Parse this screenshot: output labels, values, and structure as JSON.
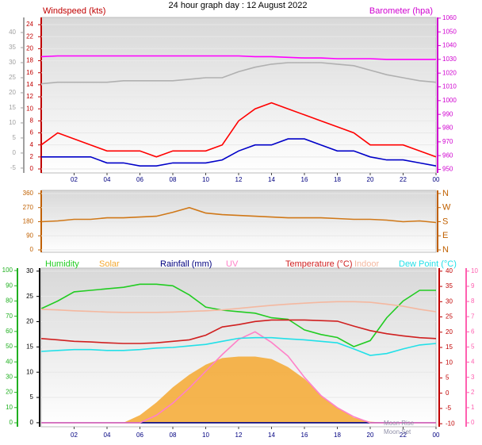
{
  "chart_data": [
    {
      "type": "line",
      "title": "24 hour graph day : 12 August 2022",
      "ylabel": "Windspeed (kts)",
      "y2label": "Barometer (hpa)",
      "x": [
        0,
        1,
        2,
        3,
        4,
        5,
        6,
        7,
        8,
        9,
        10,
        11,
        12,
        13,
        14,
        15,
        16,
        17,
        18,
        19,
        20,
        21,
        22,
        23,
        24
      ],
      "xlim": [
        0,
        24
      ],
      "xticks": [
        {
          "value": 2,
          "label": "02"
        },
        {
          "value": 4,
          "label": "04"
        },
        {
          "value": 6,
          "label": "06"
        },
        {
          "value": 8,
          "label": "08"
        },
        10,
        12,
        14,
        16,
        18,
        20,
        22,
        {
          "value": 24,
          "label": "00"
        }
      ],
      "ylim": [
        -0.66,
        25.2
      ],
      "yticks": [
        0,
        2,
        4,
        6,
        8,
        10,
        12,
        14,
        16,
        18,
        20,
        22,
        24
      ],
      "y2lim": [
        947.4,
        1060.5
      ],
      "y2ticks": [
        950,
        960,
        970,
        980,
        990,
        1000,
        1010,
        1020,
        1030,
        1040,
        1050,
        1060
      ],
      "y3lim": [
        -6.6,
        45
      ],
      "y3ticks": [
        -5,
        0,
        5,
        10,
        15,
        20,
        25,
        30,
        35,
        40
      ],
      "grid": true,
      "series": [
        {
          "color": "#b0b0b0",
          "axis": "y3",
          "values": [
            23,
            23.5,
            23.5,
            23.5,
            23.5,
            24,
            24,
            24,
            24,
            24.5,
            25,
            25,
            27,
            28.5,
            29.5,
            30,
            30,
            30,
            29.5,
            29,
            27.5,
            26,
            25,
            24,
            23.5
          ]
        },
        {
          "color": "#ff00ff",
          "axis": "y2",
          "values": [
            1032,
            1032.5,
            1032.5,
            1032.5,
            1032.5,
            1032.5,
            1032.5,
            1032.5,
            1032.5,
            1032.5,
            1032.5,
            1032.5,
            1032.5,
            1032,
            1032,
            1031.5,
            1031,
            1031,
            1030.5,
            1030.5,
            1030.5,
            1030,
            1030,
            1030,
            1030
          ]
        },
        {
          "color": "#ff0000",
          "values": [
            4,
            6,
            5,
            4,
            3,
            3,
            3,
            2,
            3,
            3,
            3,
            4,
            8,
            10,
            11,
            10,
            9,
            8,
            7,
            6,
            4,
            4,
            4,
            3,
            2
          ]
        },
        {
          "color": "#0000c8",
          "values": [
            2,
            2,
            2,
            2,
            1,
            1,
            0.5,
            0.5,
            1,
            1,
            1,
            1.5,
            3,
            4,
            4,
            5,
            5,
            4,
            3,
            3,
            2,
            1.5,
            1.5,
            1,
            0.5
          ]
        }
      ]
    },
    {
      "type": "line",
      "x": [
        0,
        1,
        2,
        3,
        4,
        5,
        6,
        7,
        8,
        9,
        10,
        11,
        12,
        13,
        14,
        15,
        16,
        17,
        18,
        19,
        20,
        21,
        22,
        23,
        24
      ],
      "xlim": [
        0,
        24
      ],
      "ylim": [
        -15,
        380
      ],
      "yticks": [
        0,
        90,
        180,
        270,
        360
      ],
      "y2lim": [
        -15,
        380
      ],
      "y2ticks": [
        {
          "value": 0,
          "label": "N"
        },
        {
          "value": 90,
          "label": "E"
        },
        {
          "value": 180,
          "label": "S"
        },
        {
          "value": 270,
          "label": "W"
        },
        {
          "value": 360,
          "label": "N"
        }
      ],
      "grid": true,
      "series": [
        {
          "color": "#d07818",
          "values": [
            180,
            185,
            195,
            195,
            205,
            205,
            210,
            215,
            240,
            270,
            235,
            225,
            220,
            215,
            210,
            205,
            205,
            205,
            200,
            195,
            195,
            190,
            180,
            185,
            175
          ]
        }
      ]
    },
    {
      "type": "line",
      "x": [
        0,
        1,
        2,
        3,
        4,
        5,
        6,
        7,
        8,
        9,
        10,
        11,
        12,
        13,
        14,
        15,
        16,
        17,
        18,
        19,
        20,
        21,
        22,
        23,
        24
      ],
      "xlim": [
        0,
        24
      ],
      "xticks": [
        {
          "value": 2,
          "label": "02"
        },
        {
          "value": 4,
          "label": "04"
        },
        {
          "value": 6,
          "label": "06"
        },
        {
          "value": 8,
          "label": "08"
        },
        10,
        12,
        14,
        16,
        18,
        20,
        22,
        {
          "value": 24,
          "label": "00"
        }
      ],
      "ylim": [
        -0.8,
        30.6
      ],
      "yticks": [
        0,
        5,
        10,
        15,
        20,
        25,
        30
      ],
      "y2lim": [
        -11,
        41
      ],
      "y2ticks": [
        -10,
        -5,
        0,
        5,
        10,
        15,
        20,
        25,
        30,
        35,
        40
      ],
      "y3lim": [
        -2.6,
        101.6
      ],
      "y3ticks": [
        0,
        10,
        20,
        30,
        40,
        50,
        60,
        70,
        80,
        90,
        100
      ],
      "y4lim": [
        -0.26,
        10.2
      ],
      "y4ticks": [
        0,
        1,
        2,
        3,
        4,
        5,
        6,
        7,
        8,
        9,
        10
      ],
      "grid": true,
      "annotations": [
        "Moon Rise",
        "Moon Set"
      ],
      "series": [
        {
          "name": "Humidity",
          "color": "#22cc22",
          "axis": "y3",
          "values": [
            75,
            80,
            86,
            87,
            88,
            89,
            91,
            91,
            90,
            84,
            76,
            74,
            73,
            72,
            69,
            68,
            61,
            58,
            56,
            50,
            54,
            69,
            80,
            87,
            87
          ]
        },
        {
          "name": "Solar",
          "color": "#f4a830",
          "fill": true,
          "values": [
            0,
            0,
            0,
            0,
            0,
            0,
            1.5,
            4,
            7,
            9.5,
            11.5,
            12.8,
            13.1,
            13.1,
            12.6,
            11,
            8.7,
            5.5,
            3,
            1,
            0.2,
            0,
            0,
            0,
            0
          ]
        },
        {
          "name": "Rainfall (mm)",
          "color": "#000080",
          "values": [
            0,
            0,
            0,
            0,
            0,
            0,
            0,
            0,
            0,
            0,
            0,
            0,
            0,
            0,
            0,
            0,
            0,
            0,
            0,
            0,
            0,
            0,
            0,
            0,
            0
          ]
        },
        {
          "name": "UV",
          "color": "#ff80c8",
          "axis": "y4",
          "values": [
            0,
            0,
            0,
            0,
            0,
            0,
            0,
            0.5,
            1.3,
            2.3,
            3.4,
            4.5,
            5.5,
            6,
            5.3,
            4.4,
            3,
            1.8,
            1,
            0.4,
            0,
            0,
            0,
            0,
            0
          ]
        },
        {
          "name": "Temperature (°C)",
          "color": "#d02020",
          "axis": "y2",
          "values": [
            17.9,
            17.5,
            17,
            16.8,
            16.5,
            16.3,
            16.3,
            16.5,
            17,
            17.5,
            19,
            21.7,
            22.5,
            23.5,
            24,
            24,
            24,
            23.8,
            23.6,
            22,
            20.5,
            19.5,
            18.8,
            18.2,
            17.9
          ]
        },
        {
          "name": "Indoor",
          "color": "#f4b8a0",
          "axis": "y2",
          "values": [
            27.5,
            27.3,
            27,
            26.8,
            26.6,
            26.5,
            26.5,
            26.5,
            26.6,
            26.8,
            27,
            27.3,
            27.8,
            28.3,
            28.8,
            29.2,
            29.5,
            29.8,
            30,
            30,
            29.8,
            29.2,
            28.5,
            27.5,
            26.7
          ]
        },
        {
          "name": "Dew Point (°C)",
          "color": "#22e0e8",
          "axis": "y2",
          "values": [
            13.7,
            14,
            14.3,
            14.3,
            14,
            14,
            14.3,
            14.8,
            15,
            15.5,
            16,
            17,
            18,
            18.2,
            18.2,
            17.8,
            17.5,
            17,
            16.5,
            14.5,
            12.4,
            13,
            14.5,
            15.8,
            16.3
          ]
        }
      ]
    }
  ]
}
